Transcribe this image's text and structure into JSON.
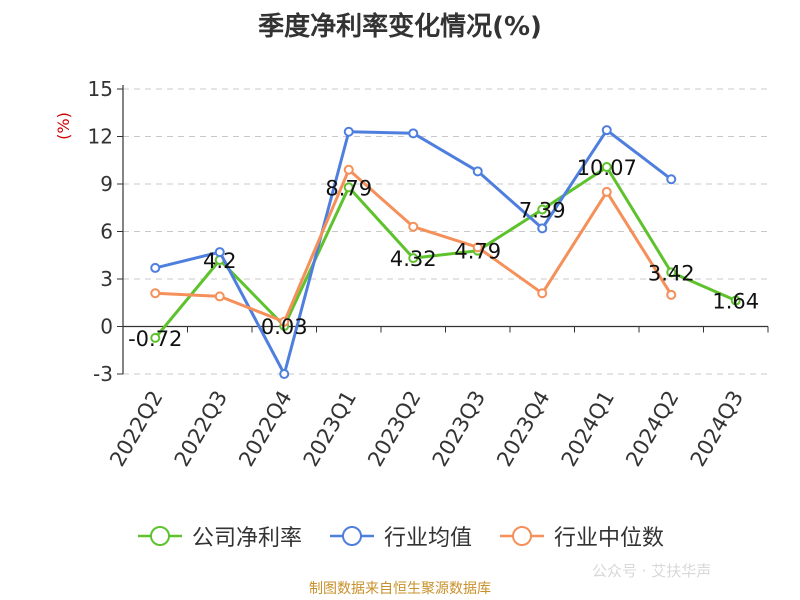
{
  "title": "季度净利率变化情况(%)",
  "source": "制图数据来自恒生聚源数据库",
  "watermark": "公众号 · 艾扶华声",
  "chart_data": {
    "type": "line",
    "title": "季度净利率变化情况(%)",
    "ylabel": "(%)",
    "ylim": [
      -3,
      15
    ],
    "yticks": [
      -3,
      0,
      3,
      6,
      9,
      12,
      15
    ],
    "grid": true,
    "legend": "bottom",
    "categories": [
      "2022Q2",
      "2022Q3",
      "2022Q4",
      "2023Q1",
      "2023Q2",
      "2023Q3",
      "2023Q4",
      "2024Q1",
      "2024Q2",
      "2024Q3"
    ],
    "series": [
      {
        "name": "公司净利率",
        "color": "#5ec22d",
        "labeled": true,
        "values": [
          -0.72,
          4.2,
          0.03,
          8.79,
          4.32,
          4.79,
          7.39,
          10.07,
          3.42,
          1.64
        ],
        "labels": [
          "-0.72",
          "4.2",
          "0.03",
          "8.79",
          "4.32",
          "4.79",
          "7.39",
          "10.07",
          "3.42",
          "1.64"
        ]
      },
      {
        "name": "行业均值",
        "color": "#4f7fde",
        "labeled": false,
        "values": [
          3.7,
          4.7,
          -3.0,
          12.3,
          12.2,
          9.8,
          6.2,
          12.4,
          9.3,
          null
        ]
      },
      {
        "name": "行业中位数",
        "color": "#f5905a",
        "labeled": false,
        "values": [
          2.1,
          1.9,
          0.3,
          9.9,
          6.3,
          5.0,
          2.1,
          8.5,
          2.0,
          null
        ]
      }
    ]
  }
}
